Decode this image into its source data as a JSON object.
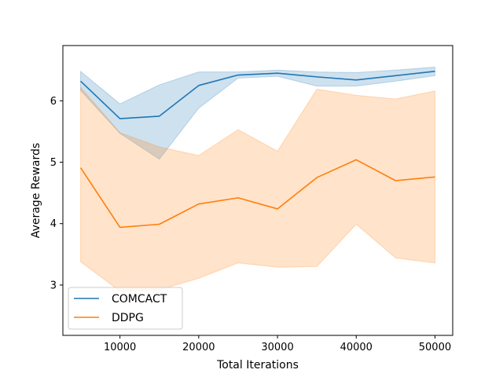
{
  "chart_data": {
    "type": "line",
    "title": "",
    "xlabel": "Total Iterations",
    "ylabel": "Average Rewards",
    "xlim": [
      2750,
      52250
    ],
    "ylim": [
      2.18,
      6.9
    ],
    "xticks": [
      10000,
      20000,
      30000,
      40000,
      50000
    ],
    "xtick_labels": [
      "10000",
      "20000",
      "30000",
      "40000",
      "50000"
    ],
    "yticks": [
      3,
      4,
      5,
      6
    ],
    "ytick_labels": [
      "3",
      "4",
      "5",
      "6"
    ],
    "grid": false,
    "legend_position": "lower-left",
    "x": [
      5000,
      10000,
      15000,
      20000,
      25000,
      30000,
      35000,
      40000,
      45000,
      50000
    ],
    "series": [
      {
        "name": "COMCACT",
        "color": "#1f77b4",
        "values": [
          6.32,
          5.71,
          5.75,
          6.25,
          6.42,
          6.45,
          6.39,
          6.34,
          6.41,
          6.48
        ],
        "lower": [
          6.17,
          5.47,
          5.05,
          5.88,
          6.37,
          6.4,
          6.24,
          6.24,
          6.32,
          6.41
        ],
        "upper": [
          6.48,
          5.95,
          6.26,
          6.47,
          6.47,
          6.5,
          6.47,
          6.46,
          6.5,
          6.55
        ]
      },
      {
        "name": "DDPG",
        "color": "#ff7f0e",
        "values": [
          4.91,
          3.94,
          3.99,
          4.32,
          4.42,
          4.24,
          4.75,
          5.04,
          4.7,
          4.76
        ],
        "lower": [
          3.38,
          2.9,
          2.92,
          3.11,
          3.36,
          3.29,
          3.3,
          3.99,
          3.44,
          3.36
        ],
        "upper": [
          6.22,
          5.48,
          5.25,
          5.11,
          5.53,
          5.18,
          6.19,
          6.09,
          6.03,
          6.16
        ]
      }
    ]
  }
}
